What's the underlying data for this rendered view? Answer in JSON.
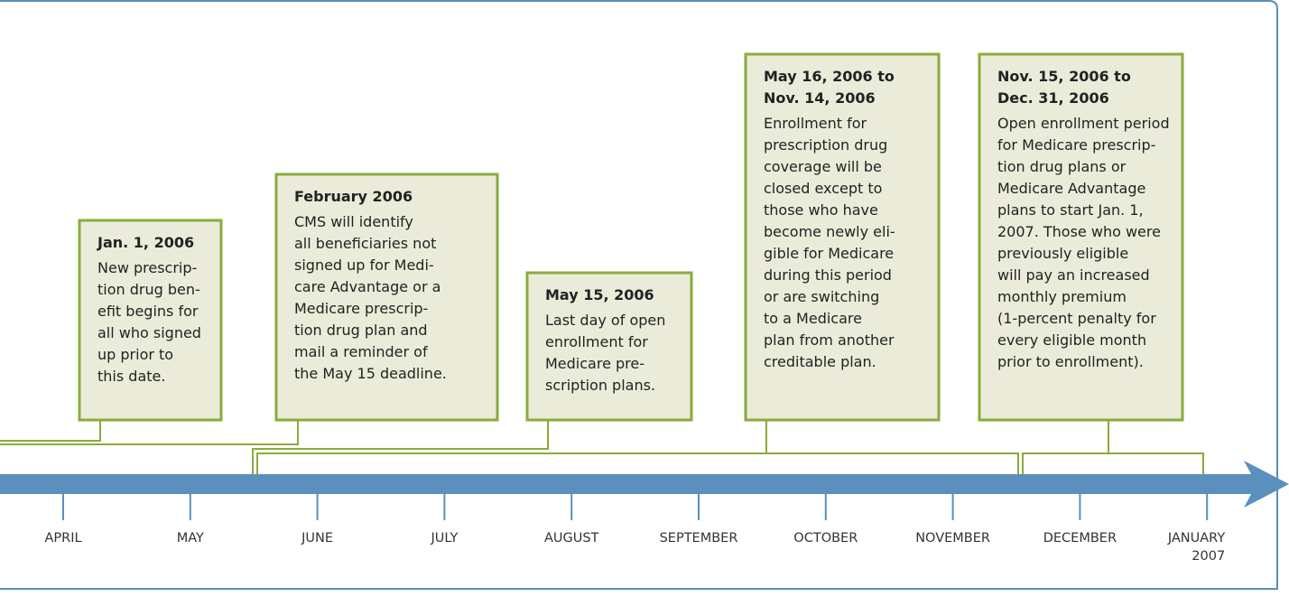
{
  "events": [
    {
      "date_lines": [
        "Jan. 1, 2006"
      ],
      "text_lines": [
        "New prescrip-",
        "tion drug ben-",
        "efit begins for",
        "all who signed",
        "up prior to",
        "this date."
      ]
    },
    {
      "date_lines": [
        "February 2006"
      ],
      "text_lines": [
        "CMS will identify",
        "all beneficiaries not",
        "signed up for Medi-",
        "care Advantage or a",
        "Medicare prescrip-",
        "tion drug plan and",
        "mail a reminder of",
        "the May 15 deadline."
      ]
    },
    {
      "date_lines": [
        "May 15, 2006"
      ],
      "text_lines": [
        "Last day of open",
        "enrollment for",
        "Medicare pre-",
        "scription plans."
      ]
    },
    {
      "date_lines": [
        "May 16, 2006 to",
        "Nov. 14, 2006"
      ],
      "text_lines": [
        "Enrollment for",
        "prescription drug",
        "coverage will be",
        "closed except to",
        "those who have",
        "become newly eli-",
        "gible for Medicare",
        "during this period",
        "or are switching",
        "to a Medicare",
        "plan from another",
        "creditable plan."
      ]
    },
    {
      "date_lines": [
        "Nov. 15, 2006 to",
        "Dec. 31, 2006"
      ],
      "text_lines": [
        "Open enrollment period",
        "for Medicare prescrip-",
        "tion drug plans or",
        "Medicare Advantage",
        "plans to start Jan. 1,",
        "2007.  Those who were",
        "previously eligible",
        "will pay an increased",
        "monthly premium",
        "(1-percent penalty for",
        "every eligible month",
        "prior to enrollment)."
      ]
    }
  ],
  "months": [
    [
      "APRIL"
    ],
    [
      "MAY"
    ],
    [
      "JUNE"
    ],
    [
      "JULY"
    ],
    [
      "AUGUST"
    ],
    [
      "SEPTEMBER"
    ],
    [
      "OCTOBER"
    ],
    [
      "NOVEMBER"
    ],
    [
      "DECEMBER"
    ],
    [
      "JANUARY",
      "2007"
    ]
  ]
}
